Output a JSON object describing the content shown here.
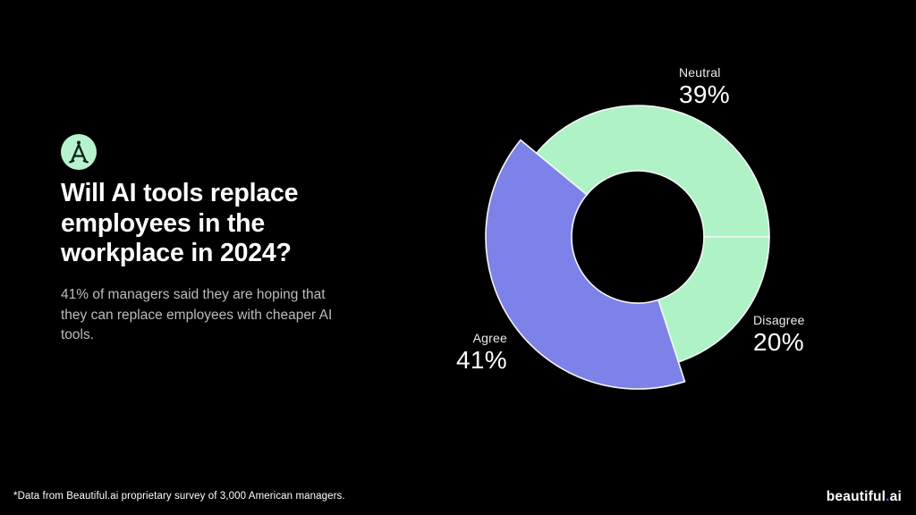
{
  "slide": {
    "background": "#000000",
    "logo": {
      "icon": "beautiful-ai-compass-a-icon",
      "bg_color": "#b7f2cf",
      "glyph_color": "#0c221a"
    },
    "title": "Will AI tools replace\nemployees in the\nworkplace in 2024?",
    "subtitle": "41% of managers said they are hoping that\nthey can replace employees with cheaper AI\ntools.",
    "footnote": "*Data from Beautiful.ai proprietary survey of 3,000 American managers.",
    "brand": {
      "name_main": "beautiful",
      "dot": ".",
      "name_suffix": "ai",
      "dot_color": "#3d6ef5"
    }
  },
  "chart_data": {
    "type": "pie",
    "donut": true,
    "title": "Will AI tools replace employees in the workplace in 2024?",
    "start_angle_deg": -50.4,
    "stroke_color": "#f4f7f4",
    "legend_position": "labels-outside",
    "slices": [
      {
        "label": "Neutral",
        "value": 39,
        "display": "39%",
        "color": "#aef2c6",
        "emphasized": false
      },
      {
        "label": "Disagree",
        "value": 20,
        "display": "20%",
        "color": "#aef2c6",
        "emphasized": false
      },
      {
        "label": "Agree",
        "value": 41,
        "display": "41%",
        "color": "#7d82e8",
        "emphasized": true
      }
    ]
  }
}
